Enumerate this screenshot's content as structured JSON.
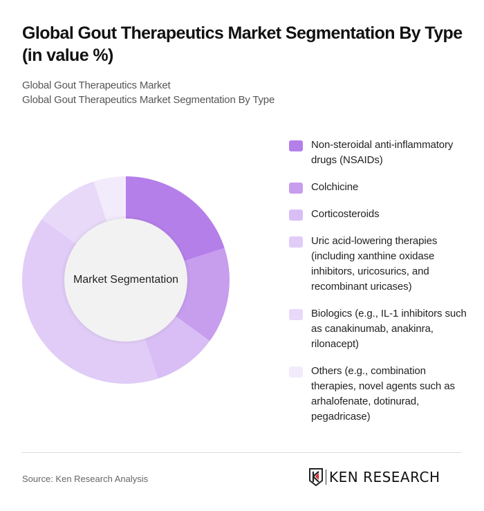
{
  "header": {
    "title": "Global Gout Therapeutics Market Segmentation By Type (in value %)",
    "subtitle_line1": "Global Gout Therapeutics Market",
    "subtitle_line2": "Global Gout Therapeutics Market Segmentation By Type"
  },
  "chart": {
    "center_label": "Market Segmentation"
  },
  "legend": [
    {
      "label": "Non-steroidal anti-inflammatory drugs (NSAIDs)",
      "color": "#B57FEA"
    },
    {
      "label": "Colchicine",
      "color": "#C79DEE"
    },
    {
      "label": "Corticosteroids",
      "color": "#D9BEF5"
    },
    {
      "label": "Uric acid-lowering therapies (including xanthine oxidase inhibitors, uricosurics, and recombinant uricases)",
      "color": "#E0CCF7"
    },
    {
      "label": "Biologics (e.g., IL-1 inhibitors such as canakinumab, anakinra, rilonacept)",
      "color": "#E8D9F9"
    },
    {
      "label": "Others (e.g., combination therapies, novel agents such as arhalofenate, dotinurad, pegadricase)",
      "color": "#F2EBFC"
    }
  ],
  "footer": {
    "source": "Source: Ken Research Analysis",
    "logo_text": "KEN RESEARCH"
  },
  "chart_data": {
    "type": "pie",
    "variant": "donut",
    "title": "Global Gout Therapeutics Market Segmentation By Type (in value %)",
    "subtitle": "Global Gout Therapeutics Market Segmentation By Type",
    "center_label": "Market Segmentation",
    "categories": [
      "Non-steroidal anti-inflammatory drugs (NSAIDs)",
      "Colchicine",
      "Corticosteroids",
      "Uric acid-lowering therapies (including xanthine oxidase inhibitors, uricosurics, and recombinant uricases)",
      "Biologics (e.g., IL-1 inhibitors such as canakinumab, anakinra, rilonacept)",
      "Others (e.g., combination therapies, novel agents such as arhalofenate, dotinurad, pegadricase)"
    ],
    "values": [
      20,
      15,
      10,
      40,
      10,
      5
    ],
    "colors": [
      "#B57FEA",
      "#C79DEE",
      "#D9BEF5",
      "#E0CCF7",
      "#E8D9F9",
      "#F2EBFC"
    ],
    "unit": "%",
    "legend_position": "right",
    "start_angle": "12 o'clock, clockwise"
  }
}
